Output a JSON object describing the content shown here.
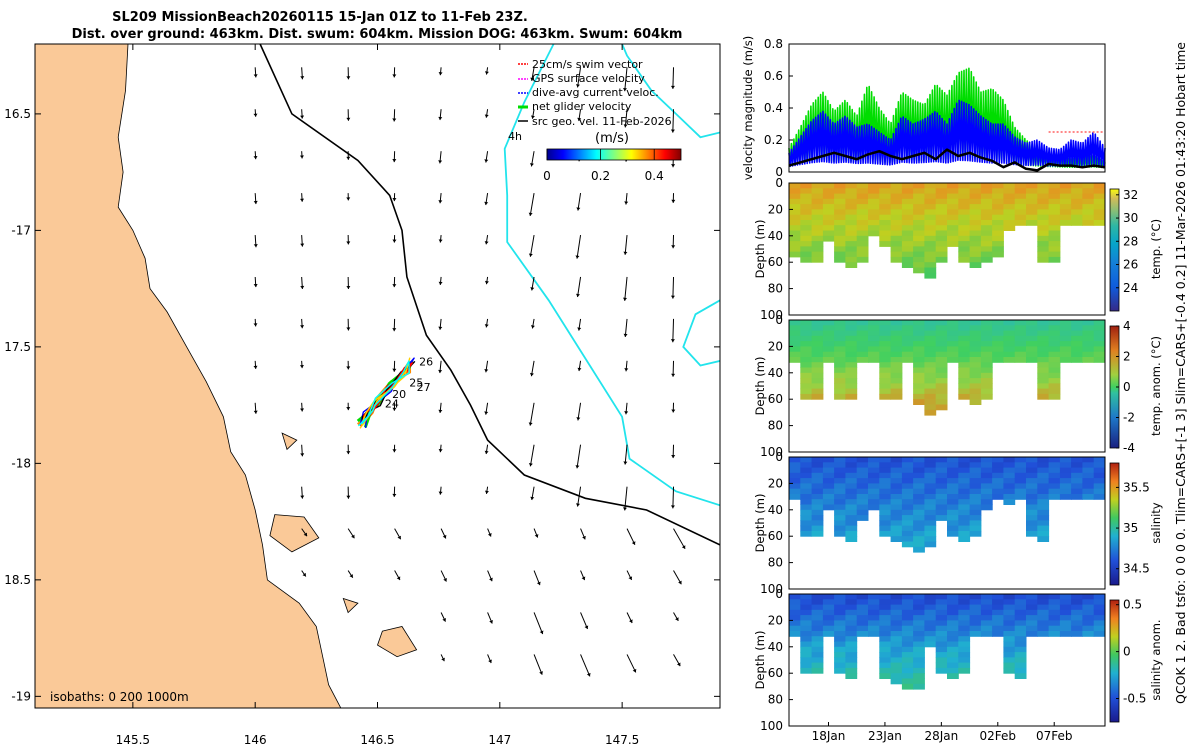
{
  "title": {
    "line1": "SL209 MissionBeach20260115 15-Jan 01Z to 11-Feb 23Z.",
    "line2": "Dist. over ground: 463km. Dist. swum: 604km. Mission DOG: 463km. Swum: 604km"
  },
  "side_text": "QCOK 1  2. Bad tsfo: 0  0  0  0. Tlim=CARS+[-1 3] Slim=CARS+[-0.4 0.2] 11-Mar-2026 01:43:20 Hobart time",
  "colors": {
    "land": "#fac998",
    "sea": "#ffffff",
    "isobath200": "#22e4ec",
    "isobath1000": "#000000",
    "gps": "#ff00ff",
    "swim": "#ff0000",
    "dive": "#0000ff",
    "net": "#00dd00",
    "geo": "#000000"
  },
  "chart_data": [
    {
      "type": "map",
      "name": "trajectory-map",
      "xlim": [
        145.1,
        147.9
      ],
      "ylim": [
        -19.05,
        -16.2
      ],
      "xticks": [
        145.5,
        146,
        146.5,
        147,
        147.5
      ],
      "xtick_labels": [
        "145.5",
        "146",
        "146.5",
        "147",
        "147.5"
      ],
      "yticks": [
        -16.5,
        -17,
        -17.5,
        -18,
        -18.5,
        -19
      ],
      "ytick_labels": [
        "16.5",
        "-17",
        "17.5",
        "-18",
        "18.5",
        "-19"
      ],
      "legend": [
        {
          "label": "25cm/s swim vector",
          "color": "#ff0000"
        },
        {
          "label": "GPS surface velocity",
          "color": "#ff00ff"
        },
        {
          "label": "dive-avg current veloc.",
          "color": "#0000ff"
        },
        {
          "label": "net glider velocity",
          "color": "#00dd00"
        },
        {
          "label": "src geo. vel. 11-Feb-2026",
          "color": "#000000"
        }
      ],
      "legend_extra": "4h",
      "colorbar": {
        "label": "(m/s)",
        "range": [
          0,
          0.5
        ],
        "ticks": [
          0,
          0.2,
          0.4
        ],
        "tick_labels": [
          "0",
          "0.2",
          "0.4"
        ]
      },
      "isobath_label": "isobaths: 0   200  1000m",
      "coast": [
        [
          145.1,
          -16.2
        ],
        [
          145.48,
          -16.2
        ],
        [
          145.47,
          -16.4
        ],
        [
          145.44,
          -16.6
        ],
        [
          145.46,
          -16.75
        ],
        [
          145.44,
          -16.9
        ],
        [
          145.5,
          -17.0
        ],
        [
          145.55,
          -17.12
        ],
        [
          145.57,
          -17.25
        ],
        [
          145.64,
          -17.35
        ],
        [
          145.72,
          -17.5
        ],
        [
          145.8,
          -17.65
        ],
        [
          145.87,
          -17.8
        ],
        [
          145.9,
          -17.95
        ],
        [
          145.96,
          -18.05
        ],
        [
          146.0,
          -18.2
        ],
        [
          146.03,
          -18.35
        ],
        [
          146.05,
          -18.5
        ],
        [
          146.18,
          -18.6
        ],
        [
          146.25,
          -18.7
        ],
        [
          146.28,
          -18.85
        ],
        [
          146.3,
          -18.95
        ],
        [
          146.35,
          -19.05
        ],
        [
          145.1,
          -19.05
        ]
      ],
      "islands": [
        [
          [
            146.08,
            -18.22
          ],
          [
            146.2,
            -18.23
          ],
          [
            146.26,
            -18.32
          ],
          [
            146.15,
            -18.38
          ],
          [
            146.06,
            -18.31
          ]
        ],
        [
          [
            146.52,
            -18.72
          ],
          [
            146.6,
            -18.7
          ],
          [
            146.66,
            -18.8
          ],
          [
            146.58,
            -18.83
          ],
          [
            146.5,
            -18.78
          ]
        ],
        [
          [
            146.11,
            -17.87
          ],
          [
            146.17,
            -17.9
          ],
          [
            146.13,
            -17.94
          ]
        ],
        [
          [
            146.36,
            -18.58
          ],
          [
            146.42,
            -18.6
          ],
          [
            146.38,
            -18.64
          ]
        ]
      ],
      "isobath200": [
        [
          147.22,
          -16.2
        ],
        [
          147.1,
          -16.45
        ],
        [
          147.02,
          -16.65
        ],
        [
          147.03,
          -16.85
        ],
        [
          147.03,
          -17.05
        ],
        [
          147.2,
          -17.3
        ],
        [
          147.35,
          -17.55
        ],
        [
          147.5,
          -17.8
        ],
        [
          147.53,
          -17.98
        ],
        [
          147.72,
          -18.12
        ],
        [
          147.9,
          -18.18
        ]
      ],
      "isobath200_b": [
        [
          147.9,
          -16.58
        ],
        [
          147.82,
          -16.6
        ],
        [
          147.72,
          -16.5
        ],
        [
          147.62,
          -16.4
        ],
        [
          147.52,
          -16.25
        ],
        [
          147.5,
          -16.2
        ]
      ],
      "isobath200_c": [
        [
          147.9,
          -17.3
        ],
        [
          147.8,
          -17.36
        ],
        [
          147.75,
          -17.5
        ],
        [
          147.82,
          -17.58
        ],
        [
          147.9,
          -17.56
        ]
      ],
      "isobath1000": [
        [
          146.02,
          -16.2
        ],
        [
          146.15,
          -16.5
        ],
        [
          146.42,
          -16.7
        ],
        [
          146.55,
          -16.85
        ],
        [
          146.6,
          -17.0
        ],
        [
          146.62,
          -17.2
        ],
        [
          146.7,
          -17.45
        ],
        [
          146.8,
          -17.6
        ],
        [
          146.88,
          -17.75
        ],
        [
          146.95,
          -17.9
        ],
        [
          147.1,
          -18.05
        ],
        [
          147.35,
          -18.15
        ],
        [
          147.6,
          -18.2
        ],
        [
          147.9,
          -18.35
        ]
      ],
      "track": [
        [
          146.44,
          -17.84
        ],
        [
          146.47,
          -17.78
        ],
        [
          146.5,
          -17.74
        ],
        [
          146.55,
          -17.68
        ],
        [
          146.6,
          -17.62
        ],
        [
          146.64,
          -17.56
        ],
        [
          146.62,
          -17.6
        ],
        [
          146.56,
          -17.66
        ],
        [
          146.5,
          -17.73
        ],
        [
          146.45,
          -17.79
        ],
        [
          146.43,
          -17.83
        ]
      ],
      "track_labels": [
        "26",
        "25",
        "27",
        "20",
        "24"
      ],
      "arrows_note": "geostrophic current arrows, mostly southward 0.1-0.3 m/s"
    },
    {
      "type": "line",
      "name": "velocity-magnitude",
      "ylabel": "velocity magnitude (m/s)",
      "ylim": [
        0,
        0.8
      ],
      "yticks": [
        0,
        0.2,
        0.4,
        0.6,
        0.8
      ],
      "ytick_labels": [
        "0",
        "0.2",
        "0.4",
        "0.6",
        "0.8"
      ],
      "xlim": [
        0,
        28
      ],
      "series": [
        {
          "name": "net glider velocity",
          "color": "#00dd00",
          "x": [
            0,
            1,
            2,
            3,
            4,
            5,
            6,
            7,
            8,
            9,
            10,
            11,
            12,
            13,
            14,
            15,
            16,
            17,
            18,
            19,
            20,
            21,
            22,
            23,
            24,
            25,
            26,
            27,
            28
          ],
          "values": [
            0.15,
            0.28,
            0.42,
            0.5,
            0.38,
            0.45,
            0.35,
            0.55,
            0.4,
            0.3,
            0.5,
            0.45,
            0.42,
            0.55,
            0.48,
            0.62,
            0.65,
            0.5,
            0.52,
            0.45,
            0.28,
            0.2,
            0.15,
            0.12,
            0.1,
            0.08,
            0.09,
            0.1,
            0.06
          ]
        },
        {
          "name": "dive-avg current veloc.",
          "color": "#0000ff",
          "x": [
            0,
            1,
            2,
            3,
            4,
            5,
            6,
            7,
            8,
            9,
            10,
            11,
            12,
            13,
            14,
            15,
            16,
            17,
            18,
            19,
            20,
            21,
            22,
            23,
            24,
            25,
            26,
            27,
            28
          ],
          "values": [
            0.12,
            0.22,
            0.32,
            0.38,
            0.3,
            0.35,
            0.28,
            0.3,
            0.25,
            0.2,
            0.35,
            0.3,
            0.33,
            0.38,
            0.3,
            0.45,
            0.42,
            0.35,
            0.3,
            0.3,
            0.22,
            0.18,
            0.2,
            0.15,
            0.14,
            0.2,
            0.18,
            0.25,
            0.15
          ]
        },
        {
          "name": "src geo. vel.",
          "color": "#000000",
          "x": [
            0,
            1,
            2,
            3,
            4,
            5,
            6,
            7,
            8,
            9,
            10,
            11,
            12,
            13,
            14,
            15,
            16,
            17,
            18,
            19,
            20,
            21,
            22,
            23,
            24,
            25,
            26,
            27,
            28
          ],
          "values": [
            0.04,
            0.06,
            0.08,
            0.1,
            0.12,
            0.1,
            0.08,
            0.11,
            0.13,
            0.1,
            0.08,
            0.1,
            0.12,
            0.08,
            0.14,
            0.1,
            0.12,
            0.09,
            0.07,
            0.03,
            0.06,
            0.02,
            0.01,
            0.05,
            0.04,
            0.04,
            0.03,
            0.04,
            0.03
          ]
        },
        {
          "name": "GPS surface velocity",
          "color": "#ff6060",
          "x": [
            23,
            24,
            25,
            26,
            27,
            28
          ],
          "values": [
            0.25,
            0.25,
            0.25,
            0.25,
            0.25,
            0.25
          ]
        }
      ]
    },
    {
      "type": "heatmap",
      "name": "temperature-section",
      "ylabel": "Depth (m)",
      "ylim": [
        0,
        100
      ],
      "yticks": [
        0,
        20,
        40,
        60,
        80,
        100
      ],
      "ytick_labels": [
        "0",
        "20",
        "40",
        "60",
        "80",
        "100"
      ],
      "colorbar": {
        "label": "temp. (°C)",
        "range": [
          22,
          32.5
        ],
        "ticks": [
          24,
          26,
          28,
          30,
          32
        ],
        "tick_labels": [
          "24",
          "26",
          "28",
          "30",
          "32"
        ]
      },
      "surface_value": 30,
      "bottom_value": 27.5,
      "depth_profile": [
        55,
        57,
        58,
        42,
        60,
        62,
        60,
        40,
        45,
        60,
        62,
        65,
        70,
        60,
        45,
        60,
        62,
        58,
        55,
        35,
        30,
        30,
        58,
        60,
        30,
        30,
        30,
        30
      ]
    },
    {
      "type": "heatmap",
      "name": "temperature-anomaly-section",
      "ylabel": "Depth (m)",
      "ylim": [
        0,
        100
      ],
      "yticks": [
        0,
        20,
        40,
        60,
        80,
        100
      ],
      "ytick_labels": [
        "0",
        "20",
        "40",
        "60",
        "80",
        "100"
      ],
      "colorbar": {
        "label": "temp. anom. (°C)",
        "range": [
          -4,
          4
        ],
        "ticks": [
          -4,
          -2,
          0,
          2,
          4
        ],
        "tick_labels": [
          "-4",
          "-2",
          "0",
          "2",
          "4"
        ]
      },
      "surface_value": -1,
      "bottom_value": 2.5,
      "depth_profile": [
        30,
        58,
        58,
        30,
        58,
        60,
        30,
        30,
        58,
        60,
        30,
        62,
        70,
        68,
        30,
        60,
        62,
        58,
        30,
        30,
        30,
        30,
        58,
        60,
        30,
        30,
        30,
        30
      ]
    },
    {
      "type": "heatmap",
      "name": "salinity-section",
      "ylabel": "Depth (m)",
      "ylim": [
        0,
        100
      ],
      "yticks": [
        0,
        20,
        40,
        60,
        80,
        100
      ],
      "ytick_labels": [
        "0",
        "20",
        "40",
        "60",
        "80",
        "100"
      ],
      "colorbar": {
        "label": "salinity",
        "range": [
          34.3,
          35.8
        ],
        "ticks": [
          34.5,
          35,
          35.5
        ],
        "tick_labels": [
          "34.5",
          "35",
          "35.5"
        ]
      },
      "surface_value": 34.55,
      "bottom_value": 34.8,
      "depth_profile": [
        30,
        58,
        60,
        40,
        60,
        62,
        45,
        40,
        58,
        62,
        65,
        70,
        68,
        45,
        60,
        62,
        58,
        40,
        30,
        35,
        30,
        60,
        62,
        30,
        30,
        30,
        30,
        30
      ]
    },
    {
      "type": "heatmap",
      "name": "salinity-anomaly-section",
      "ylabel": "Depth (m)",
      "ylim": [
        0,
        100
      ],
      "yticks": [
        0,
        20,
        40,
        60,
        80,
        100
      ],
      "ytick_labels": [
        "0",
        "20",
        "40",
        "60",
        "80",
        "100"
      ],
      "xticks": [
        3.5,
        8.5,
        13.5,
        18.5,
        23.5
      ],
      "xtick_labels": [
        "18Jan",
        "23Jan",
        "28Jan",
        "02Feb",
        "07Feb"
      ],
      "colorbar": {
        "label": "salinity anom.",
        "range": [
          -0.75,
          0.55
        ],
        "ticks": [
          -0.5,
          0,
          0.5
        ],
        "tick_labels": [
          "-0.5",
          "0",
          "0.5"
        ]
      },
      "surface_value": -0.55,
      "bottom_value": -0.2,
      "depth_profile": [
        30,
        58,
        60,
        30,
        60,
        62,
        30,
        30,
        62,
        65,
        70,
        70,
        40,
        60,
        62,
        58,
        30,
        30,
        30,
        60,
        62,
        30,
        30,
        30,
        30,
        30,
        30,
        30
      ]
    }
  ]
}
